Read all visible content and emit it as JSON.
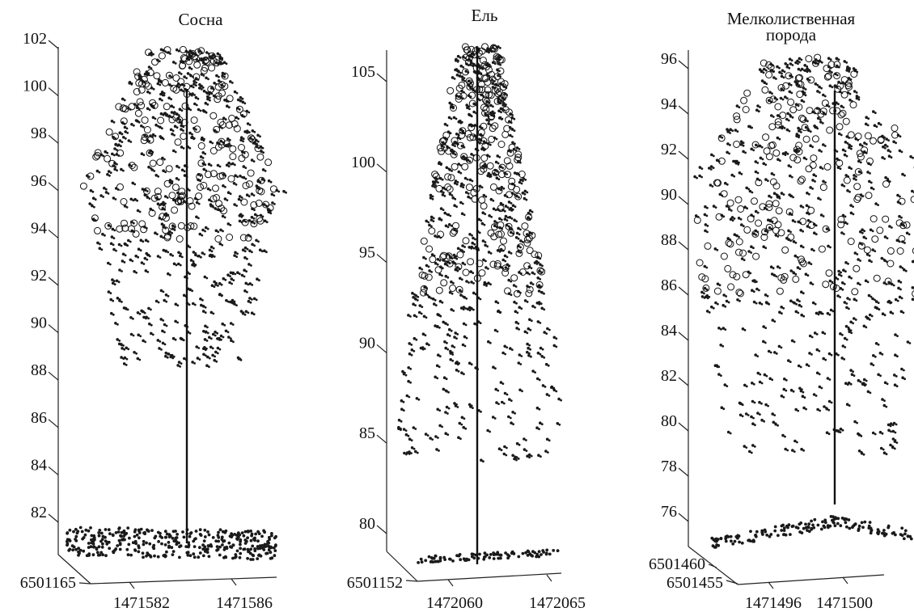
{
  "chart_data": [
    {
      "type": "scatter",
      "title": "Сосна",
      "z_ticks": [
        "82",
        "84",
        "86",
        "88",
        "90",
        "92",
        "94",
        "96",
        "98",
        "100",
        "102"
      ],
      "zlim": [
        81,
        102
      ],
      "x_ticks": [
        "1471582",
        "1471586"
      ],
      "y_ticks": [
        "6501165"
      ],
      "crown_z_range": [
        88.5,
        102
      ],
      "ground_z": 81.2,
      "trunk_top_z": 101
    },
    {
      "type": "scatter",
      "title": "Ель",
      "z_ticks": [
        "80",
        "85",
        "90",
        "95",
        "100",
        "105"
      ],
      "zlim": [
        78.5,
        107
      ],
      "x_ticks": [
        "1472060",
        "1472065"
      ],
      "y_ticks": [
        "6501152"
      ],
      "crown_z_range": [
        84,
        107
      ],
      "ground_z": 79,
      "trunk_top_z": 106.5
    },
    {
      "type": "scatter",
      "title": "Мелколиственная порода",
      "title_lines": [
        "Мелколиственная",
        "порода"
      ],
      "z_ticks": [
        "76",
        "78",
        "80",
        "82",
        "84",
        "86",
        "88",
        "90",
        "92",
        "94",
        "96"
      ],
      "zlim": [
        75,
        97
      ],
      "x_ticks": [
        "1471496",
        "1471500"
      ],
      "y_ticks": [
        "6501460",
        "6501455"
      ],
      "crown_z_range": [
        79,
        96.5
      ],
      "ground_z": 76,
      "trunk_top_z": 95.5
    }
  ]
}
